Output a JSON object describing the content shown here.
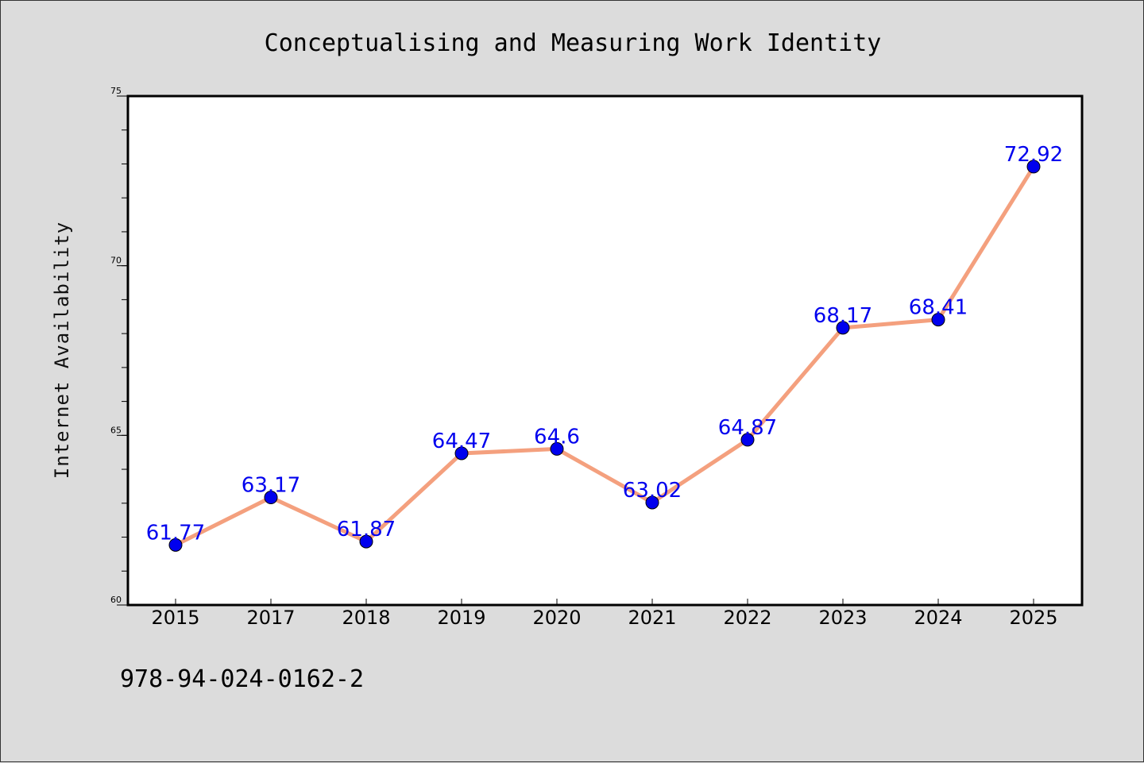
{
  "chart_data": {
    "type": "line",
    "title": "Conceptualising and Measuring Work Identity",
    "ylabel": "Internet Availability",
    "xlabel": "",
    "categories": [
      "2015",
      "2017",
      "2018",
      "2019",
      "2020",
      "2021",
      "2022",
      "2023",
      "2024",
      "2025"
    ],
    "values": [
      61.77,
      63.17,
      61.87,
      64.47,
      64.6,
      63.02,
      64.87,
      68.17,
      68.41,
      72.92
    ],
    "data_labels": [
      "61.77",
      "63.17",
      "61.87",
      "64.47",
      "64.6",
      "63.02",
      "64.87",
      "68.17",
      "68.41",
      "72.92"
    ],
    "ylim": [
      60,
      75
    ],
    "yticks": [
      60,
      65,
      70,
      75
    ],
    "ytick_labels": [
      "60",
      "65",
      "70",
      "75"
    ],
    "grid": false,
    "colors": {
      "line": "#f4a07e",
      "marker": "#0000ee",
      "label": "#0000ee"
    }
  },
  "footer": {
    "code": "978-94-024-0162-2"
  }
}
